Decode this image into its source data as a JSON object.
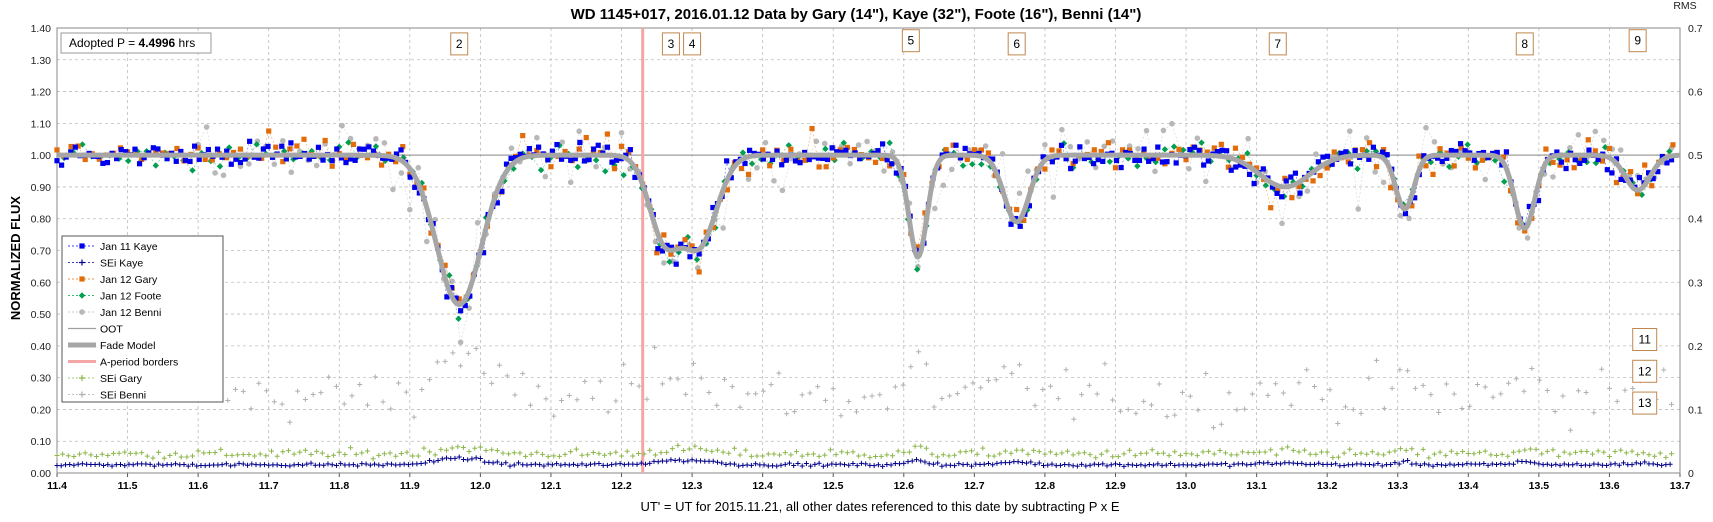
{
  "chart_data": {
    "type": "scatter",
    "title": "WD 1145+017, 2016.01.12 Data by Gary (14\"), Kaye (32\"), Foote (16\"), Benni (14\")",
    "xlabel": "UT' = UT for 2015.11.21, all other dates referenced to this date by subtracting P x E",
    "ylabel": "NORMALIZED FLUX",
    "y2label": "RMS",
    "xlim": [
      11.4,
      13.7
    ],
    "ylim": [
      0.0,
      1.4
    ],
    "y2lim": [
      0.0,
      0.7
    ],
    "xticks": [
      "11.4",
      "11.5",
      "11.6",
      "11.7",
      "11.8",
      "11.9",
      "12.0",
      "12.1",
      "12.2",
      "12.3",
      "12.4",
      "12.5",
      "12.6",
      "12.7",
      "12.8",
      "12.9",
      "13.0",
      "13.1",
      "13.2",
      "13.3",
      "13.4",
      "13.5",
      "13.6",
      "13.7"
    ],
    "yticks": [
      "0.00",
      "0.10",
      "0.20",
      "0.30",
      "0.40",
      "0.50",
      "0.60",
      "0.70",
      "0.80",
      "0.90",
      "1.00",
      "1.10",
      "1.20",
      "1.30",
      "1.40"
    ],
    "y2ticks": [
      "0",
      "0.1",
      "0.2",
      "0.3",
      "0.4",
      "0.5",
      "0.6",
      "0.7"
    ],
    "grid": true,
    "legend_position": "left",
    "period_box": {
      "prefix": "Adopted P = ",
      "value": "4.4996",
      "suffix": " hrs"
    },
    "a_period_border_x": 12.23,
    "oot_level": 1.0,
    "dip_labels": [
      {
        "label": "2",
        "x": 11.97,
        "y": 1.35
      },
      {
        "label": "3",
        "x": 12.27,
        "y": 1.35
      },
      {
        "label": "4",
        "x": 12.3,
        "y": 1.35
      },
      {
        "label": "5",
        "x": 12.61,
        "y": 1.36
      },
      {
        "label": "6",
        "x": 12.76,
        "y": 1.35
      },
      {
        "label": "7",
        "x": 13.13,
        "y": 1.35
      },
      {
        "label": "8",
        "x": 13.48,
        "y": 1.35
      },
      {
        "label": "9",
        "x": 13.64,
        "y": 1.36
      },
      {
        "label": "11",
        "x": 13.65,
        "y": 0.42
      },
      {
        "label": "12",
        "x": 13.65,
        "y": 0.32
      },
      {
        "label": "13",
        "x": 13.65,
        "y": 0.22
      }
    ],
    "fade_model": {
      "name": "Fade Model",
      "baseline": 1.0,
      "dips": [
        {
          "center": 11.97,
          "depth": 0.47,
          "width": 0.045
        },
        {
          "center": 12.26,
          "depth": 0.25,
          "width": 0.03
        },
        {
          "center": 12.31,
          "depth": 0.28,
          "width": 0.035
        },
        {
          "center": 12.62,
          "depth": 0.32,
          "width": 0.018
        },
        {
          "center": 12.76,
          "depth": 0.21,
          "width": 0.025
        },
        {
          "center": 13.14,
          "depth": 0.1,
          "width": 0.05
        },
        {
          "center": 13.31,
          "depth": 0.17,
          "width": 0.018
        },
        {
          "center": 13.48,
          "depth": 0.23,
          "width": 0.02
        },
        {
          "center": 13.64,
          "depth": 0.11,
          "width": 0.025
        }
      ]
    },
    "series": [
      {
        "name": "Jan 11 Kaye",
        "color": "#0000ee",
        "marker": "square"
      },
      {
        "name": "SEi Kaye",
        "color": "#00008b",
        "marker": "plus",
        "axis": "rms",
        "level": 0.013
      },
      {
        "name": "Jan 12 Gary",
        "color": "#e36c0a",
        "marker": "square"
      },
      {
        "name": "Jan 12 Foote",
        "color": "#00a050",
        "marker": "diamond"
      },
      {
        "name": "Jan 12 Benni",
        "color": "#b8b8b8",
        "marker": "circle"
      },
      {
        "name": "OOT",
        "color": "#9e9e9e",
        "marker": "line"
      },
      {
        "name": "Fade Model",
        "color": "#a6a6a6",
        "marker": "thickline"
      },
      {
        "name": "A-period borders",
        "color": "#f4a6a6",
        "marker": "line"
      },
      {
        "name": "SEi Gary",
        "color": "#8db64a",
        "marker": "plus",
        "axis": "rms",
        "level": 0.03
      },
      {
        "name": "SEi Benni",
        "color": "#b0b0b0",
        "marker": "plus",
        "axis": "rms",
        "level": 0.12
      }
    ]
  }
}
